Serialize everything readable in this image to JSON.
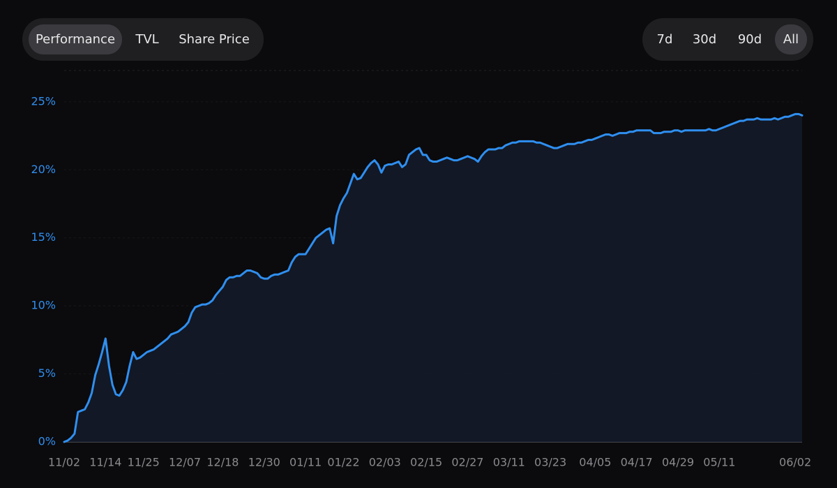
{
  "metric_tabs": {
    "items": [
      "Performance",
      "TVL",
      "Share Price"
    ],
    "active": 0
  },
  "range_tabs": {
    "items": [
      "7d",
      "30d",
      "90d",
      "All"
    ],
    "active": 3
  },
  "chart_data": {
    "type": "area",
    "categories": [
      "11/02",
      null,
      null,
      null,
      null,
      null,
      null,
      null,
      null,
      null,
      null,
      null,
      "11/14",
      null,
      null,
      null,
      null,
      null,
      null,
      null,
      null,
      null,
      null,
      "11/25",
      null,
      null,
      null,
      null,
      null,
      null,
      null,
      null,
      null,
      null,
      null,
      "12/07",
      null,
      null,
      null,
      null,
      null,
      null,
      null,
      null,
      null,
      null,
      "12/18",
      null,
      null,
      null,
      null,
      null,
      null,
      null,
      null,
      null,
      null,
      null,
      "12/30",
      null,
      null,
      null,
      null,
      null,
      null,
      null,
      null,
      null,
      null,
      null,
      "01/11",
      null,
      null,
      null,
      null,
      null,
      null,
      null,
      null,
      null,
      null,
      "01/22",
      null,
      null,
      null,
      null,
      null,
      null,
      null,
      null,
      null,
      null,
      null,
      "02/03",
      null,
      null,
      null,
      null,
      null,
      null,
      null,
      null,
      null,
      null,
      null,
      "02/15",
      null,
      null,
      null,
      null,
      null,
      null,
      null,
      null,
      null,
      null,
      null,
      "02/27",
      null,
      null,
      null,
      null,
      null,
      null,
      null,
      null,
      null,
      null,
      null,
      "03/11",
      null,
      null,
      null,
      null,
      null,
      null,
      null,
      null,
      null,
      null,
      null,
      "03/23",
      null,
      null,
      null,
      null,
      null,
      null,
      null,
      null,
      null,
      null,
      null,
      null,
      "04/05",
      null,
      null,
      null,
      null,
      null,
      null,
      null,
      null,
      null,
      null,
      null,
      "04/17",
      null,
      null,
      null,
      null,
      null,
      null,
      null,
      null,
      null,
      null,
      null,
      "04/29",
      null,
      null,
      null,
      null,
      null,
      null,
      null,
      null,
      null,
      null,
      null,
      "05/11",
      null,
      null,
      null,
      null,
      null,
      null,
      null,
      null,
      null,
      null,
      null,
      null,
      null,
      null,
      null,
      null,
      null,
      null,
      null,
      null,
      null,
      "06/02",
      null,
      null
    ],
    "values": [
      0,
      0.1,
      0.3,
      0.6,
      2.2,
      2.3,
      2.4,
      2.9,
      3.6,
      4.9,
      5.7,
      6.6,
      7.6,
      5.6,
      4.2,
      3.5,
      3.4,
      3.8,
      4.4,
      5.6,
      6.6,
      6.1,
      6.2,
      6.4,
      6.6,
      6.7,
      6.8,
      7.0,
      7.2,
      7.4,
      7.6,
      7.9,
      8.0,
      8.1,
      8.3,
      8.5,
      8.8,
      9.5,
      9.9,
      10.0,
      10.1,
      10.1,
      10.2,
      10.4,
      10.8,
      11.1,
      11.4,
      11.9,
      12.1,
      12.1,
      12.2,
      12.2,
      12.4,
      12.6,
      12.6,
      12.5,
      12.4,
      12.1,
      12.0,
      12.0,
      12.2,
      12.3,
      12.3,
      12.4,
      12.5,
      12.6,
      13.2,
      13.6,
      13.8,
      13.8,
      13.8,
      14.2,
      14.6,
      15.0,
      15.2,
      15.4,
      15.6,
      15.7,
      14.6,
      16.6,
      17.4,
      17.9,
      18.3,
      19.0,
      19.7,
      19.3,
      19.4,
      19.8,
      20.2,
      20.5,
      20.7,
      20.4,
      19.8,
      20.3,
      20.4,
      20.4,
      20.5,
      20.6,
      20.2,
      20.4,
      21.1,
      21.3,
      21.5,
      21.6,
      21.1,
      21.1,
      20.7,
      20.6,
      20.6,
      20.7,
      20.8,
      20.9,
      20.8,
      20.7,
      20.7,
      20.8,
      20.9,
      21.0,
      20.9,
      20.8,
      20.6,
      21.0,
      21.3,
      21.5,
      21.5,
      21.5,
      21.6,
      21.6,
      21.8,
      21.9,
      22.0,
      22.0,
      22.1,
      22.1,
      22.1,
      22.1,
      22.1,
      22.0,
      22.0,
      21.9,
      21.8,
      21.7,
      21.6,
      21.6,
      21.7,
      21.8,
      21.9,
      21.9,
      21.9,
      22.0,
      22.0,
      22.1,
      22.2,
      22.2,
      22.3,
      22.4,
      22.5,
      22.6,
      22.6,
      22.5,
      22.6,
      22.7,
      22.7,
      22.7,
      22.8,
      22.8,
      22.9,
      22.9,
      22.9,
      22.9,
      22.9,
      22.7,
      22.7,
      22.7,
      22.8,
      22.8,
      22.8,
      22.9,
      22.9,
      22.8,
      22.9,
      22.9,
      22.9,
      22.9,
      22.9,
      22.9,
      22.9,
      23.0,
      22.9,
      22.9,
      23.0,
      23.1,
      23.2,
      23.3,
      23.4,
      23.5,
      23.6,
      23.6,
      23.7,
      23.7,
      23.7,
      23.8,
      23.7,
      23.7,
      23.7,
      23.7,
      23.8,
      23.7,
      23.8,
      23.9,
      23.9,
      24.0,
      24.1,
      24.1,
      24.0
    ],
    "color": "#2f8ff0",
    "ylim": [
      0,
      27.3
    ],
    "yticks": [
      {
        "value": 0,
        "label": "0%"
      },
      {
        "value": 5,
        "label": "5%"
      },
      {
        "value": 10,
        "label": "10%"
      },
      {
        "value": 15,
        "label": "15%"
      },
      {
        "value": 20,
        "label": "20%"
      },
      {
        "value": 25,
        "label": "25%"
      }
    ]
  }
}
